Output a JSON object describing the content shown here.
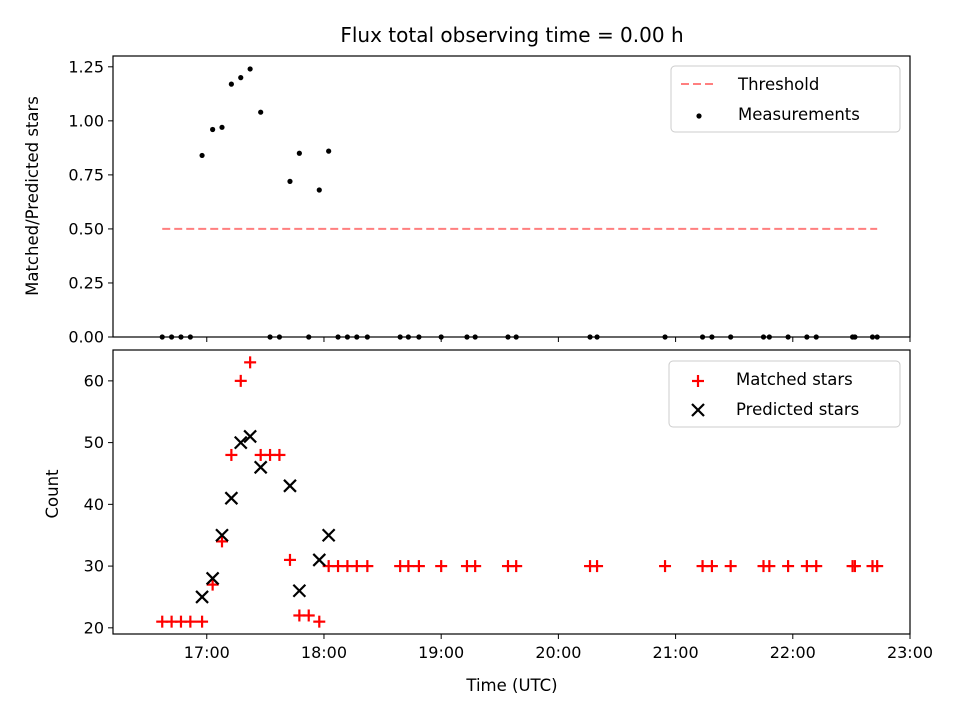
{
  "chart_data": [
    {
      "type": "scatter",
      "title": "Flux total observing time = 0.00 h",
      "ylabel": "Matched/Predicted stars",
      "xlabel": "",
      "xlim": [
        16.2,
        23.0
      ],
      "ylim": [
        0,
        1.3
      ],
      "yticks": [
        0,
        0.25,
        0.5,
        0.75,
        1.0,
        1.25
      ],
      "ytick_labels": [
        "0.00",
        "0.25",
        "0.50",
        "0.75",
        "1.00",
        "1.25"
      ],
      "xticks": [
        17,
        18,
        19,
        20,
        21,
        22,
        23
      ],
      "legend_position": "top-right",
      "series": [
        {
          "name": "Threshold",
          "kind": "dashed-line",
          "color": "#ff7f7f",
          "x": [
            16.62,
            22.72
          ],
          "y": [
            0.5,
            0.5
          ]
        },
        {
          "name": "Measurements",
          "kind": "dots",
          "color": "#000000",
          "x": [
            16.62,
            16.7,
            16.78,
            16.86,
            16.96,
            17.05,
            17.13,
            17.21,
            17.29,
            17.37,
            17.46,
            17.54,
            17.62,
            17.71,
            17.79,
            17.87,
            17.96,
            18.04,
            18.12,
            18.2,
            18.28,
            18.37,
            18.65,
            18.72,
            18.81,
            19.0,
            19.22,
            19.29,
            19.57,
            19.64,
            20.27,
            20.33,
            20.91,
            21.23,
            21.31,
            21.47,
            21.75,
            21.8,
            21.96,
            22.12,
            22.2,
            22.51,
            22.53,
            22.68,
            22.72
          ],
          "y": [
            0,
            0,
            0,
            0,
            0.84,
            0.96,
            0.97,
            1.17,
            1.2,
            1.24,
            1.04,
            0,
            0,
            0.72,
            0.85,
            0,
            0.68,
            0.86,
            0,
            0,
            0,
            0,
            0,
            0,
            0,
            0,
            0,
            0,
            0,
            0,
            0,
            0,
            0,
            0,
            0,
            0,
            0,
            0,
            0,
            0,
            0,
            0,
            0,
            0,
            0
          ]
        }
      ]
    },
    {
      "type": "scatter",
      "title": "",
      "ylabel": "Count",
      "xlabel": "Time (UTC)",
      "xlim": [
        16.2,
        23.0
      ],
      "ylim": [
        19,
        65
      ],
      "yticks": [
        20,
        30,
        40,
        50,
        60
      ],
      "ytick_labels": [
        "20",
        "30",
        "40",
        "50",
        "60"
      ],
      "xticks": [
        17,
        18,
        19,
        20,
        21,
        22,
        23
      ],
      "xtick_labels": [
        "17:00",
        "18:00",
        "19:00",
        "20:00",
        "21:00",
        "22:00",
        "23:00"
      ],
      "legend_position": "top-right",
      "series": [
        {
          "name": "Matched stars",
          "kind": "plus",
          "color": "#ff0000",
          "x": [
            16.62,
            16.7,
            16.78,
            16.86,
            16.96,
            17.05,
            17.13,
            17.21,
            17.29,
            17.37,
            17.46,
            17.54,
            17.62,
            17.71,
            17.79,
            17.87,
            17.96,
            18.04,
            18.12,
            18.2,
            18.28,
            18.37,
            18.65,
            18.72,
            18.81,
            19.0,
            19.22,
            19.29,
            19.57,
            19.64,
            20.27,
            20.33,
            20.91,
            21.23,
            21.31,
            21.47,
            21.75,
            21.8,
            21.96,
            22.12,
            22.2,
            22.51,
            22.53,
            22.68,
            22.72
          ],
          "y": [
            21,
            21,
            21,
            21,
            21,
            27,
            34,
            48,
            60,
            63,
            48,
            48,
            48,
            31,
            22,
            22,
            21,
            30,
            30,
            30,
            30,
            30,
            30,
            30,
            30,
            30,
            30,
            30,
            30,
            30,
            30,
            30,
            30,
            30,
            30,
            30,
            30,
            30,
            30,
            30,
            30,
            30,
            30,
            30,
            30
          ]
        },
        {
          "name": "Predicted stars",
          "kind": "x",
          "color": "#000000",
          "x": [
            16.96,
            17.05,
            17.13,
            17.21,
            17.29,
            17.37,
            17.46,
            17.71,
            17.79,
            17.96,
            18.04
          ],
          "y": [
            25,
            28,
            35,
            41,
            50,
            51,
            46,
            43,
            26,
            31,
            35
          ]
        }
      ]
    }
  ]
}
